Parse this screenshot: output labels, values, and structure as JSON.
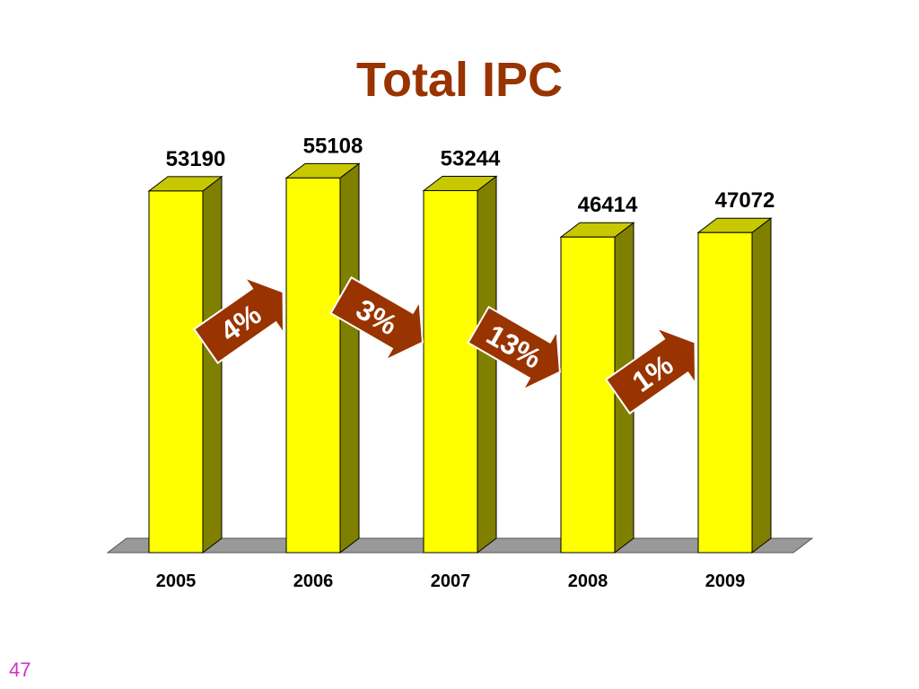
{
  "slide": {
    "title": "Total IPC",
    "page_number": "47"
  },
  "colors": {
    "title": "#993300",
    "bar_front": "#ffff00",
    "bar_side": "#808000",
    "bar_edge": "#000000",
    "floor": "#999999",
    "arrow": "#993300",
    "arrow_text": "#ffffff",
    "page_number": "#cc33cc"
  },
  "chart_data": {
    "type": "bar",
    "style": "3d-column",
    "categories": [
      "2005",
      "2006",
      "2007",
      "2008",
      "2009"
    ],
    "values": [
      53190,
      55108,
      53244,
      46414,
      47072
    ],
    "data_labels": [
      "53190",
      "55108",
      "53244",
      "46414",
      "47072"
    ],
    "ylim": [
      0,
      57000
    ],
    "grid": false,
    "legend": "none",
    "annotations": [
      {
        "text": "4%",
        "between": [
          "2005",
          "2006"
        ],
        "direction": "up"
      },
      {
        "text": "3%",
        "between": [
          "2006",
          "2007"
        ],
        "direction": "down"
      },
      {
        "text": "13%",
        "between": [
          "2007",
          "2008"
        ],
        "direction": "down"
      },
      {
        "text": "1%",
        "between": [
          "2008",
          "2009"
        ],
        "direction": "up"
      }
    ]
  }
}
